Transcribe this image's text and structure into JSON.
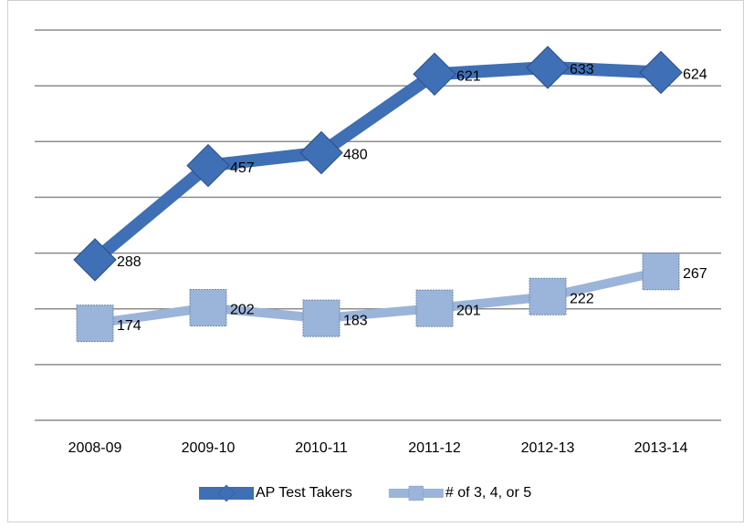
{
  "chart_data": {
    "type": "line",
    "categories": [
      "2008-09",
      "2009-10",
      "2010-11",
      "2011-12",
      "2012-13",
      "2013-14"
    ],
    "series": [
      {
        "name": "AP Test Takers",
        "color": "#3f6fb4",
        "marker": "diamond",
        "values": [
          288,
          457,
          480,
          621,
          633,
          624
        ]
      },
      {
        "name": "# of 3, 4, or 5",
        "color": "#9bb4d9",
        "marker": "square",
        "values": [
          174,
          202,
          183,
          201,
          222,
          267
        ]
      }
    ],
    "ylim": [
      0,
      700
    ],
    "yticks": [
      0,
      100,
      200,
      300,
      400,
      500,
      600,
      700
    ],
    "grid": true,
    "legend": "bottom"
  }
}
